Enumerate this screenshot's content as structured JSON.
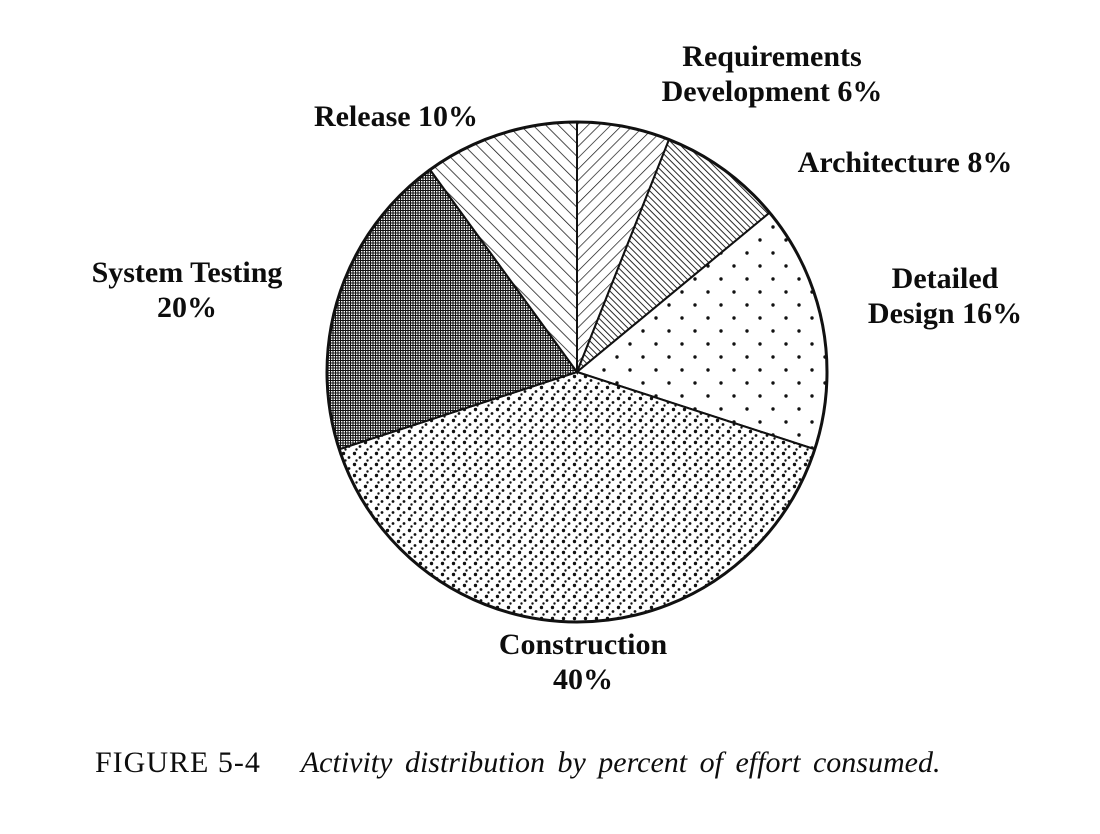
{
  "figure": {
    "caption_prefix": "FIGURE 5-4",
    "caption": "Activity distribution by percent of effort consumed."
  },
  "chart_data": {
    "type": "pie",
    "title": "Activity distribution by percent of effort consumed.",
    "start_angle_deg": 0,
    "direction": "clockwise",
    "unit": "percent",
    "legend_position": "labels-around-pie",
    "slices": [
      {
        "id": "requirements-development",
        "label": "Requirements Development",
        "value": 6,
        "label_lines": [
          "Requirements",
          "Development 6%"
        ],
        "texture": "tex-hatch-up"
      },
      {
        "id": "architecture",
        "label": "Architecture",
        "value": 8,
        "label_lines": [
          "Architecture 8%"
        ],
        "texture": "tex-hatch-dense"
      },
      {
        "id": "detailed-design",
        "label": "Detailed Design",
        "value": 16,
        "label_lines": [
          "Detailed",
          "Design 16%"
        ],
        "texture": "tex-dots-sparse"
      },
      {
        "id": "construction",
        "label": "Construction",
        "value": 40,
        "label_lines": [
          "Construction",
          "40%"
        ],
        "texture": "tex-dots-dense"
      },
      {
        "id": "system-testing",
        "label": "System Testing",
        "value": 20,
        "label_lines": [
          "System Testing",
          "20%"
        ],
        "texture": "tex-crosshatch-dark"
      },
      {
        "id": "release",
        "label": "Release",
        "value": 10,
        "label_lines": [
          "Release 10%"
        ],
        "texture": "tex-hatch-down"
      }
    ]
  }
}
